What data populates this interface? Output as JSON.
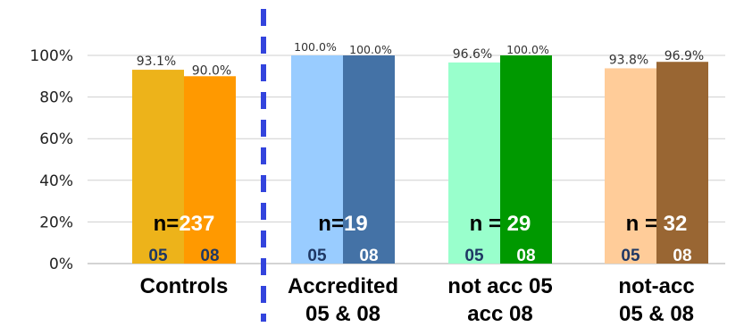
{
  "chart_data": {
    "type": "bar",
    "y_ticks": [
      "0%",
      "20%",
      "40%",
      "60%",
      "80%",
      "100%"
    ],
    "ylim": [
      0,
      100
    ],
    "grid": true,
    "groups": [
      {
        "category_lines": [
          "Controls"
        ],
        "n_prefix": "n=",
        "n_value": "237",
        "bars": [
          {
            "year": "05",
            "value": 93.1,
            "label": "93.1%",
            "color": "#EDB31A",
            "year_color": "#1F3864"
          },
          {
            "year": "08",
            "value": 90.0,
            "label": "90.0%",
            "color": "#FF9900",
            "year_color": "#1F3864"
          }
        ]
      },
      {
        "category_lines": [
          "Accredited",
          "05 & 08"
        ],
        "n_prefix": "n=",
        "n_value": "19",
        "bars": [
          {
            "year": "05",
            "value": 100.0,
            "label": "100.0%",
            "color": "#99CCFF",
            "year_color": "#1F3864"
          },
          {
            "year": "08",
            "value": 100.0,
            "label": "100.0%",
            "color": "#4472A6",
            "year_color": "#FFFFFF"
          }
        ]
      },
      {
        "category_lines": [
          "not acc 05",
          "acc 08"
        ],
        "n_prefix": "n = ",
        "n_value": "29",
        "bars": [
          {
            "year": "05",
            "value": 96.6,
            "label": "96.6%",
            "color": "#99FFCC",
            "year_color": "#1F3864"
          },
          {
            "year": "08",
            "value": 100.0,
            "label": "100.0%",
            "color": "#009900",
            "year_color": "#FFFFFF"
          }
        ]
      },
      {
        "category_lines": [
          "not-acc",
          "05 & 08"
        ],
        "n_prefix": "n = ",
        "n_value": "32",
        "bars": [
          {
            "year": "05",
            "value": 93.8,
            "label": "93.8%",
            "color": "#FFCC99",
            "year_color": "#1F3864"
          },
          {
            "year": "08",
            "value": 96.9,
            "label": "96.9%",
            "color": "#996633",
            "year_color": "#FFFFFF"
          }
        ]
      }
    ],
    "separator_color": "#3344DD"
  }
}
